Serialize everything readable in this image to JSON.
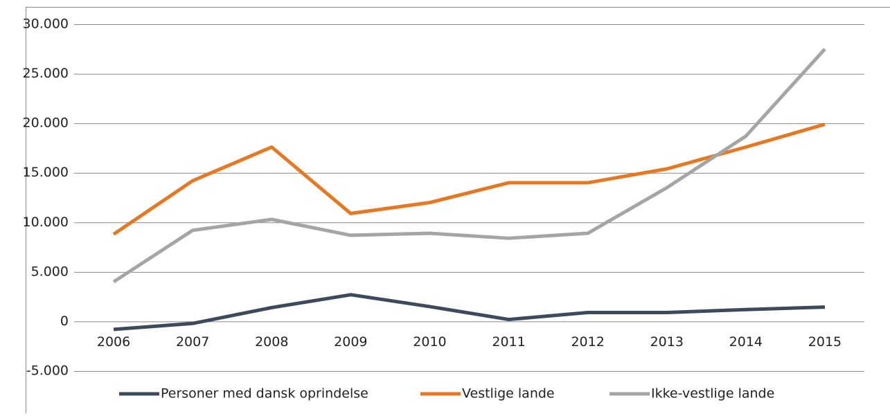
{
  "chart_data": {
    "type": "line",
    "categories": [
      "2006",
      "2007",
      "2008",
      "2009",
      "2010",
      "2011",
      "2012",
      "2013",
      "2014",
      "2015"
    ],
    "series": [
      {
        "name": "Personer med dansk oprindelse",
        "color": "#3b4a5c",
        "values": [
          -800,
          -200,
          1400,
          2700,
          1500,
          200,
          900,
          900,
          1200,
          1450
        ]
      },
      {
        "name": "Vestlige lande",
        "color": "#e87722",
        "values": [
          8800,
          14200,
          17600,
          10900,
          12000,
          14000,
          14000,
          15400,
          17600,
          19900
        ]
      },
      {
        "name": "Ikke-vestlige lande",
        "color": "#a5a5a5",
        "values": [
          4000,
          9200,
          10300,
          8700,
          8900,
          8400,
          8900,
          13500,
          18700,
          27500
        ]
      }
    ],
    "ylim": [
      -5000,
      30000
    ],
    "yticks": [
      {
        "value": -5000,
        "label": "-5.000"
      },
      0,
      {
        "value": 5000,
        "label": "5.000"
      },
      {
        "value": 10000,
        "label": "10.000"
      },
      {
        "value": 15000,
        "label": "15.000"
      },
      {
        "value": 20000,
        "label": "20.000"
      },
      {
        "value": 25000,
        "label": "25.000"
      },
      {
        "value": 30000,
        "label": "30.000"
      }
    ],
    "grid": true,
    "legend": "bottom"
  }
}
